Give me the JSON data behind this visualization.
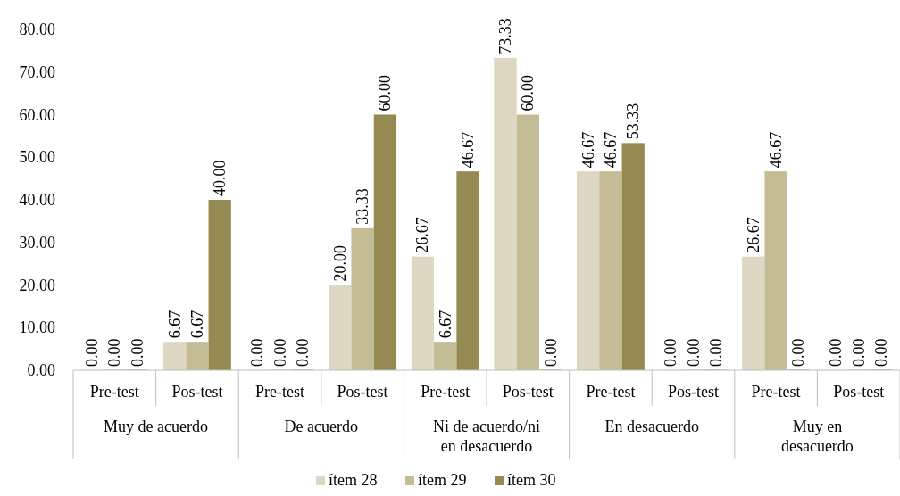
{
  "chart_data": {
    "type": "bar",
    "categories": [
      "Pre-test",
      "Pos-test",
      "Pre-test",
      "Pos-test",
      "Pre-test",
      "Pos-test",
      "Pre-test",
      "Pos-test",
      "Pre-test",
      "Pos-test"
    ],
    "annotations": [
      "Muy de acuerdo",
      "De acuerdo",
      "Ni de acuerdo/ni en desacuerdo",
      "En desacuerdo",
      "Muy en desacuerdo"
    ],
    "series": [
      {
        "name": "ítem 28",
        "color": "#ddd8c4",
        "values": [
          0,
          6.67,
          0,
          20,
          26.67,
          73.33,
          46.67,
          0,
          26.67,
          0
        ],
        "value_labels": [
          "0.00",
          "6.67",
          "0.00",
          "20.00",
          "26.67",
          "73.33",
          "46.67",
          "0.00",
          "26.67",
          "0.00"
        ]
      },
      {
        "name": "ítem 29",
        "color": "#c4bc94",
        "values": [
          0,
          6.67,
          0,
          33.33,
          6.67,
          60,
          46.67,
          0,
          46.67,
          0
        ],
        "value_labels": [
          "0.00",
          "6.67",
          "0.00",
          "33.33",
          "6.67",
          "60.00",
          "46.67",
          "0.00",
          "46.67",
          "0.00"
        ]
      },
      {
        "name": "ítem 30",
        "color": "#958b52",
        "values": [
          0,
          40,
          0,
          60,
          46.67,
          0,
          53.33,
          0,
          0,
          0
        ],
        "value_labels": [
          "0.00",
          "40.00",
          "0.00",
          "60.00",
          "46.67",
          "0.00",
          "53.33",
          "0.00",
          "0.00",
          "0.00"
        ]
      }
    ],
    "ylim": [
      0,
      80
    ],
    "yticks": [
      {
        "value": 0,
        "label": "0.00"
      },
      {
        "value": 10,
        "label": "10.00"
      },
      {
        "value": 20,
        "label": "20.00"
      },
      {
        "value": 30,
        "label": "30.00"
      },
      {
        "value": 40,
        "label": "40.00"
      },
      {
        "value": 50,
        "label": "50.00"
      },
      {
        "value": 60,
        "label": "60.00"
      },
      {
        "value": 70,
        "label": "70.00"
      },
      {
        "value": 80,
        "label": "80.00"
      }
    ],
    "grid": false,
    "legend": "bottom"
  }
}
